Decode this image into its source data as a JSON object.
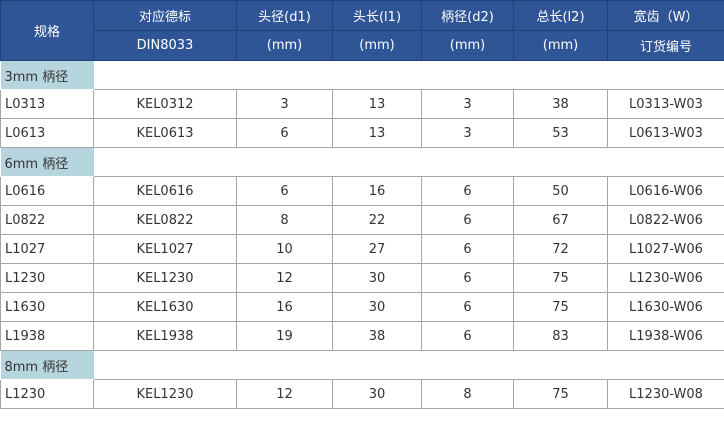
{
  "header": {
    "spec": "规格",
    "din": [
      "对应德标",
      "DIN8033"
    ],
    "d1": [
      "头径(d1)",
      "(mm)"
    ],
    "l1": [
      "头长(l1)",
      "(mm)"
    ],
    "d2": [
      "柄径(d2)",
      "(mm)"
    ],
    "l2": [
      "总长(l2)",
      "(mm)"
    ],
    "order": [
      "宽齿（W）",
      "订货编号"
    ]
  },
  "groups": [
    {
      "label": "3mm 柄径",
      "rows": [
        [
          "L0313",
          "KEL0312",
          "3",
          "13",
          "3",
          "38",
          "L0313-W03"
        ],
        [
          "L0613",
          "KEL0613",
          "6",
          "13",
          "3",
          "53",
          "L0613-W03"
        ]
      ]
    },
    {
      "label": "6mm 柄径",
      "rows": [
        [
          "L0616",
          "KEL0616",
          "6",
          "16",
          "6",
          "50",
          "L0616-W06"
        ],
        [
          "L0822",
          "KEL0822",
          "8",
          "22",
          "6",
          "67",
          "L0822-W06"
        ],
        [
          "L1027",
          "KEL1027",
          "10",
          "27",
          "6",
          "72",
          "L1027-W06"
        ],
        [
          "L1230",
          "KEL1230",
          "12",
          "30",
          "6",
          "75",
          "L1230-W06"
        ],
        [
          "L1630",
          "KEL1630",
          "16",
          "30",
          "6",
          "75",
          "L1630-W06"
        ],
        [
          "L1938",
          "KEL1938",
          "19",
          "38",
          "6",
          "83",
          "L1938-W06"
        ]
      ]
    },
    {
      "label": "8mm 柄径",
      "rows": [
        [
          "L1230",
          "KEL1230",
          "12",
          "30",
          "8",
          "75",
          "L1230-W08"
        ]
      ]
    }
  ]
}
